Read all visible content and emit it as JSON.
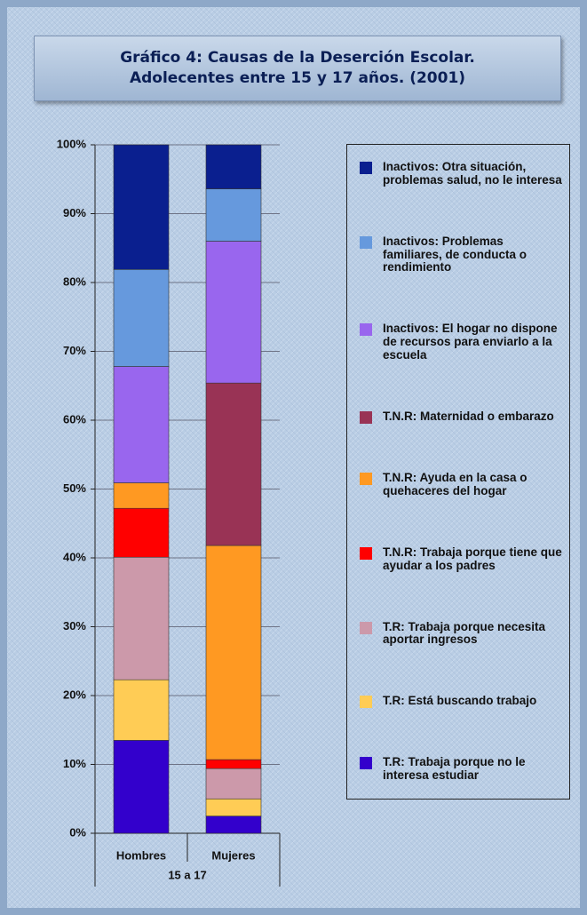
{
  "chart_data": {
    "type": "stacked_bar",
    "title": "Gráfico 4: Causas de la Deserción Escolar. Adolecentes entre 15 y 17 años. (2001)",
    "categories": [
      "Hombres",
      "Mujeres"
    ],
    "x_label": "15 a 17",
    "series": [
      {
        "name": "T.R: Trabaja porque no le interesa estudiar",
        "color": "#3300cc",
        "values": [
          13.5,
          2.5
        ]
      },
      {
        "name": "T.R: Está buscando trabajo",
        "color": "#ffcc55",
        "values": [
          8.8,
          2.5
        ]
      },
      {
        "name": "T.R: Trabaja porque necesita aportar ingresos",
        "color": "#cc99aa",
        "values": [
          17.8,
          4.4
        ]
      },
      {
        "name": "T.N.R: Trabaja porque tiene que ayudar a los padres",
        "color": "#ff0000",
        "values": [
          7.1,
          1.3
        ]
      },
      {
        "name": "T.N.R:  Ayuda en la casa o quehaceres del hogar",
        "color": "#ff9922",
        "values": [
          3.7,
          31.1
        ]
      },
      {
        "name": "T.N.R: Maternidad o embarazo",
        "color": "#993355",
        "values": [
          0,
          23.6
        ]
      },
      {
        "name": "Inactivos: El hogar no dispone de recursos para enviarlo a la escuela",
        "color": "#9966ee",
        "values": [
          16.9,
          20.6
        ]
      },
      {
        "name": "Inactivos: Problemas familiares, de conducta o rendimiento",
        "color": "#6699dd",
        "values": [
          14.1,
          7.6
        ]
      },
      {
        "name": "Inactivos: Otra situación, problemas salud, no le interesa",
        "color": "#0a1f8f",
        "values": [
          18.1,
          6.4
        ]
      }
    ],
    "ylim": [
      0,
      100
    ],
    "yticks": [
      {
        "value": 0,
        "label": "0%"
      },
      {
        "value": 10,
        "label": "10%"
      },
      {
        "value": 20,
        "label": "20%"
      },
      {
        "value": 30,
        "label": "30%"
      },
      {
        "value": 40,
        "label": "40%"
      },
      {
        "value": 50,
        "label": "50%"
      },
      {
        "value": 60,
        "label": "60%"
      },
      {
        "value": 70,
        "label": "70%"
      },
      {
        "value": 80,
        "label": "80%"
      },
      {
        "value": 90,
        "label": "90%"
      },
      {
        "value": 100,
        "label": "100%"
      }
    ],
    "grid": true
  }
}
